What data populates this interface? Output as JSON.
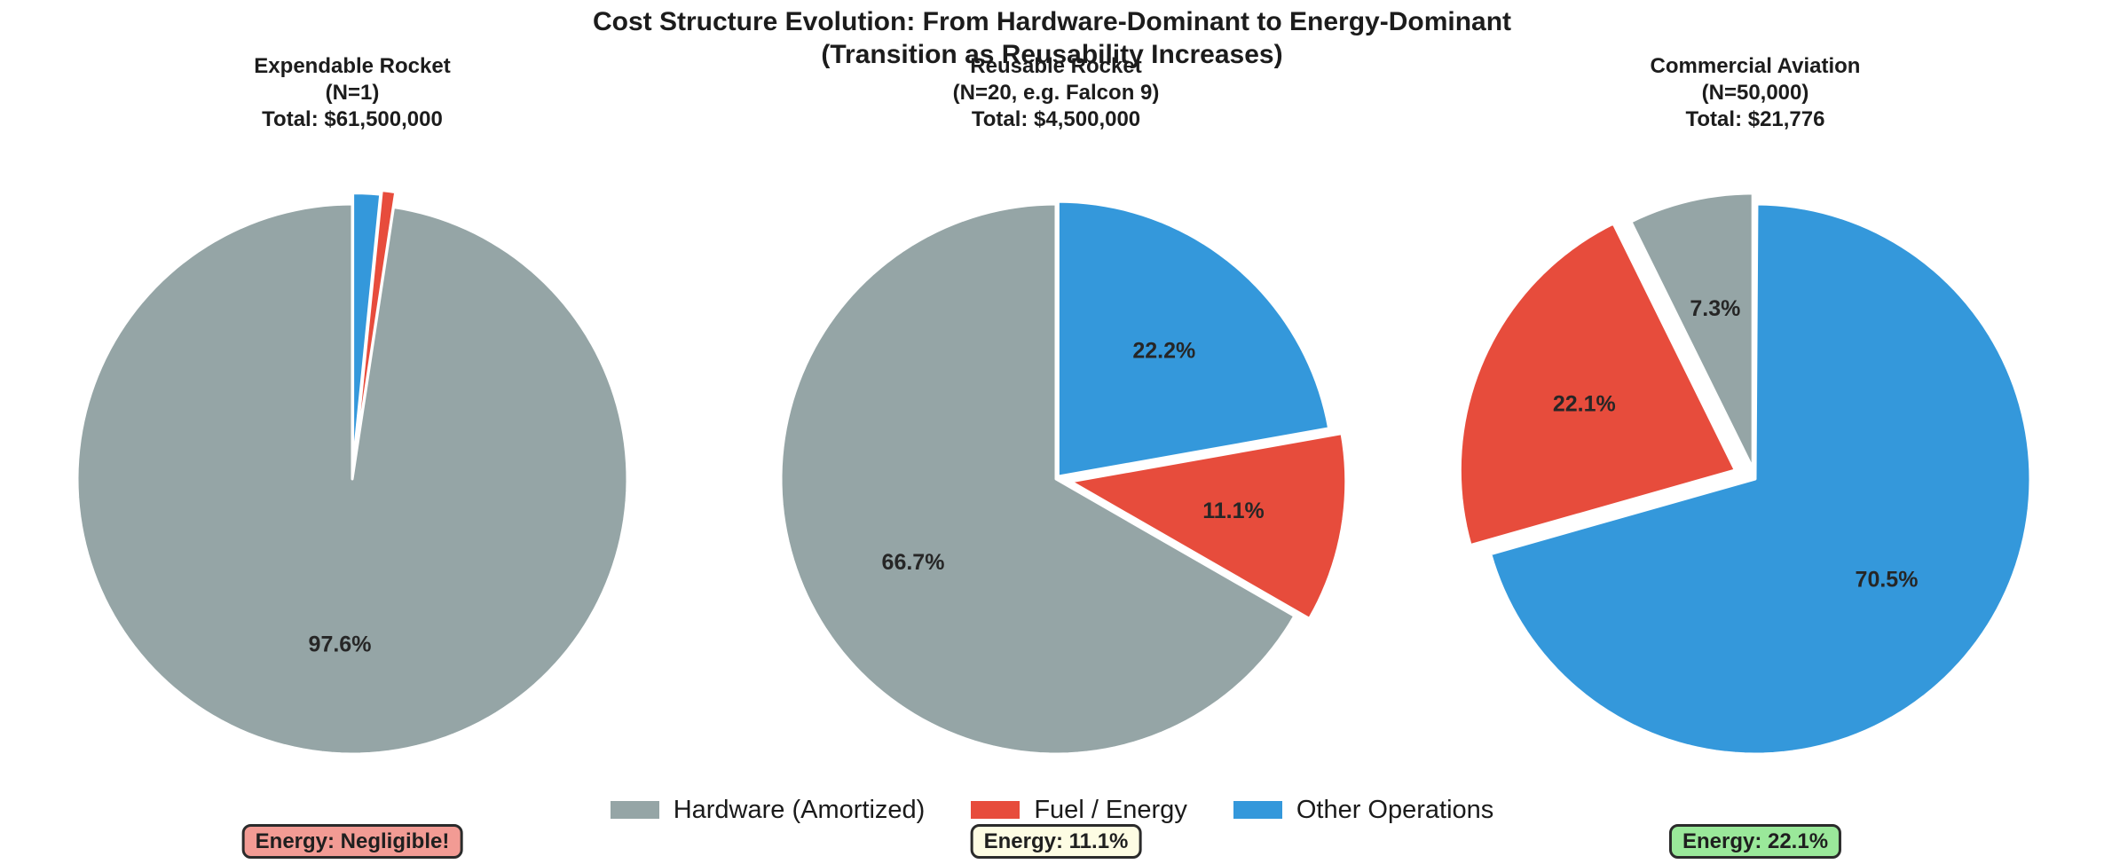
{
  "suptitle": {
    "line1": "Cost Structure Evolution: From Hardware-Dominant to Energy-Dominant",
    "line2": "(Transition as Reusability Increases)"
  },
  "palette": {
    "hardware": "#95A5A6",
    "fuel": "#E74C3C",
    "other": "#3498DB",
    "label_text": "#262626",
    "annotation_border": "#2b2b2b"
  },
  "legend": {
    "position": "bottom-center",
    "items": [
      {
        "label": "Hardware (Amortized)",
        "color": "#95A5A6"
      },
      {
        "label": "Fuel / Energy",
        "color": "#E74C3C"
      },
      {
        "label": "Other Operations",
        "color": "#3498DB"
      }
    ]
  },
  "chart_data": [
    {
      "type": "pie",
      "title": "Expendable Rocket",
      "subtitle": "(N=1)",
      "total_label": "Total: $61,500,000",
      "total_value": 61500000,
      "labels": [
        "Hardware (Amortized)",
        "Fuel / Energy",
        "Other Operations"
      ],
      "values_pct": [
        97.6,
        0.8,
        1.6
      ],
      "pct_labels": [
        "97.6%",
        null,
        null
      ],
      "colors": [
        "#95A5A6",
        "#E74C3C",
        "#3498DB"
      ],
      "explode": [
        0,
        0.055,
        0.04
      ],
      "start_angle": 90,
      "counterclockwise": true,
      "annotation": {
        "text": "Energy: Negligible!",
        "bg": "#F29B94"
      }
    },
    {
      "type": "pie",
      "title": "Reusable Rocket",
      "subtitle": "(N=20, e.g. Falcon 9)",
      "total_label": "Total: $4,500,000",
      "total_value": 4500000,
      "labels": [
        "Hardware (Amortized)",
        "Fuel / Energy",
        "Other Operations"
      ],
      "values_pct": [
        66.7,
        11.1,
        22.2
      ],
      "pct_labels": [
        "66.7%",
        "11.1%",
        "22.2%"
      ],
      "colors": [
        "#95A5A6",
        "#E74C3C",
        "#3498DB"
      ],
      "explode": [
        0,
        0.055,
        0.012
      ],
      "start_angle": 90,
      "counterclockwise": true,
      "annotation": {
        "text": "Energy: 11.1%",
        "bg": "#FDFCE3"
      }
    },
    {
      "type": "pie",
      "title": "Commercial Aviation",
      "subtitle": "(N=50,000)",
      "total_label": "Total: $21,776",
      "total_value": 21776,
      "labels": [
        "Hardware (Amortized)",
        "Fuel / Energy",
        "Other Operations"
      ],
      "values_pct": [
        7.3,
        22.1,
        70.5
      ],
      "pct_labels": [
        "7.3%",
        "22.1%",
        "70.5%"
      ],
      "colors": [
        "#95A5A6",
        "#E74C3C",
        "#3498DB"
      ],
      "explode": [
        0.04,
        0.08,
        0
      ],
      "start_angle": 90,
      "counterclockwise": true,
      "annotation": {
        "text": "Energy: 22.1%",
        "bg": "#9AE89A"
      }
    }
  ]
}
